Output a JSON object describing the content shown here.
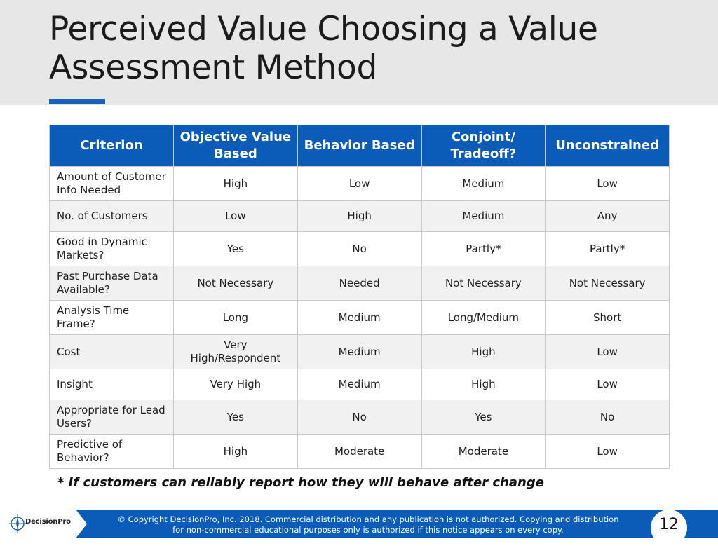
{
  "slide": {
    "title": "Perceived Value Choosing a Value Assessment Method",
    "footnote": "* If customers can reliably report how they will behave after change",
    "copyright_line1": "© Copyright DecisionPro, Inc.  2018. Commercial distribution and any publication is not authorized. Copying and distribution",
    "copyright_line2": "for non-commercial educational purposes only is authorized if this notice appears on every copy.",
    "page_number": "12",
    "logo_text": "DecisionPro",
    "accent_color": "#1a63b7",
    "header_color": "#0b5cb8"
  },
  "table": {
    "headers": [
      "Criterion",
      "Objective Value Based",
      "Behavior Based",
      "Conjoint/ Tradeoff?",
      "Unconstrained"
    ],
    "rows": [
      [
        "Amount of Customer Info Needed",
        "High",
        "Low",
        "Medium",
        "Low"
      ],
      [
        "No. of Customers",
        "Low",
        "High",
        "Medium",
        "Any"
      ],
      [
        "Good in Dynamic Markets?",
        "Yes",
        "No",
        "Partly*",
        "Partly*"
      ],
      [
        "Past Purchase Data Available?",
        "Not Necessary",
        "Needed",
        "Not Necessary",
        "Not Necessary"
      ],
      [
        "Analysis Time Frame?",
        "Long",
        "Medium",
        "Long/Medium",
        "Short"
      ],
      [
        "Cost",
        "Very High/Respondent",
        "Medium",
        "High",
        "Low"
      ],
      [
        "Insight",
        "Very High",
        "Medium",
        "High",
        "Low"
      ],
      [
        "Appropriate for Lead Users?",
        "Yes",
        "No",
        "Yes",
        "No"
      ],
      [
        "Predictive of Behavior?",
        "High",
        "Moderate",
        "Moderate",
        "Low"
      ]
    ]
  }
}
